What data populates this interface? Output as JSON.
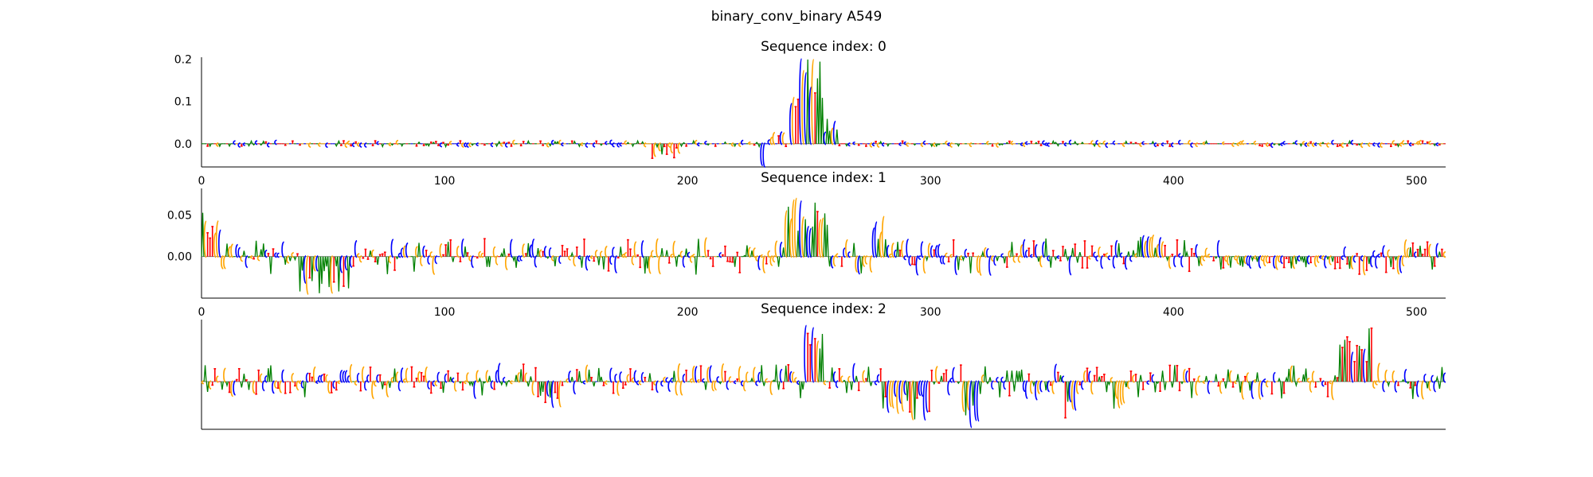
{
  "figure": {
    "suptitle": "binary_conv_binary A549"
  },
  "colors": {
    "A": "#008000",
    "C": "#0000ff",
    "G": "#ffa500",
    "T": "#ff0000",
    "axis": "#000000",
    "baseline": "#555555"
  },
  "chart_data": [
    {
      "type": "sequence-logo",
      "title": "Sequence index: 0",
      "xlim": [
        0,
        512
      ],
      "ylim": [
        -0.055,
        0.205
      ],
      "x_ticks": [
        0,
        100,
        200,
        300,
        400,
        500
      ],
      "x_tick_labels": [
        "0",
        "100",
        "200",
        "300",
        "400",
        "500"
      ],
      "y_ticks": [
        0.0,
        0.1,
        0.2
      ],
      "y_tick_labels": [
        "0.0",
        "0.1",
        "0.2"
      ],
      "background": {
        "amplitude": 0.004,
        "bias": -0.003
      },
      "regions": [
        {
          "range": [
            185,
            197
          ],
          "min": -0.04,
          "max": -0.005,
          "sign": "neg"
        },
        {
          "range": [
            230,
            240
          ],
          "min": -0.01,
          "max": 0.03,
          "sign": "mixed"
        },
        {
          "range": [
            242,
            246
          ],
          "min": 0.08,
          "max": 0.12,
          "sign": "pos"
        },
        {
          "range": [
            246,
            256
          ],
          "min": 0.1,
          "max": 0.2,
          "sign": "pos"
        },
        {
          "range": [
            256,
            262
          ],
          "min": 0.02,
          "max": 0.06,
          "sign": "pos"
        },
        {
          "range": [
            230,
            232
          ],
          "min": -0.055,
          "max": -0.03,
          "sign": "neg"
        }
      ]
    },
    {
      "type": "sequence-logo",
      "title": "Sequence index: 1",
      "xlim": [
        0,
        512
      ],
      "ylim": [
        -0.05,
        0.082
      ],
      "x_ticks": [
        0,
        100,
        200,
        300,
        400,
        500
      ],
      "x_tick_labels": [
        "0",
        "100",
        "200",
        "300",
        "400",
        "500"
      ],
      "y_ticks": [
        0.0,
        0.05
      ],
      "y_tick_labels": [
        "0.00",
        "0.05"
      ],
      "background": {
        "amplitude": 0.018,
        "bias": 0.004
      },
      "regions": [
        {
          "range": [
            0,
            8
          ],
          "min": 0.02,
          "max": 0.055,
          "sign": "pos"
        },
        {
          "range": [
            40,
            62
          ],
          "min": -0.045,
          "max": -0.01,
          "sign": "neg"
        },
        {
          "range": [
            240,
            258
          ],
          "min": 0.03,
          "max": 0.075,
          "sign": "pos"
        },
        {
          "range": [
            276,
            282
          ],
          "min": 0.02,
          "max": 0.05,
          "sign": "pos"
        },
        {
          "range": [
            385,
            395
          ],
          "min": 0.01,
          "max": 0.025,
          "sign": "pos"
        },
        {
          "range": [
            420,
            470
          ],
          "min": -0.015,
          "max": 0.0,
          "sign": "neg"
        }
      ]
    },
    {
      "type": "sequence-logo",
      "title": "Sequence index: 2",
      "xlim": [
        0,
        512
      ],
      "ylim": [
        -1.0,
        1.3
      ],
      "x_ticks": [],
      "x_tick_labels": [],
      "y_ticks": [],
      "y_tick_labels": [],
      "background": {
        "amplitude": 0.32,
        "bias": 0.05
      },
      "regions": [
        {
          "range": [
            248,
            256
          ],
          "min": 0.6,
          "max": 1.2,
          "sign": "pos"
        },
        {
          "range": [
            280,
            300
          ],
          "min": -0.8,
          "max": -0.2,
          "sign": "neg"
        },
        {
          "range": [
            313,
            320
          ],
          "min": -0.95,
          "max": -0.5,
          "sign": "neg"
        },
        {
          "range": [
            355,
            360
          ],
          "min": -0.85,
          "max": -0.4,
          "sign": "neg"
        },
        {
          "range": [
            375,
            380
          ],
          "min": -0.7,
          "max": -0.3,
          "sign": "neg"
        },
        {
          "range": [
            468,
            482
          ],
          "min": 0.4,
          "max": 1.2,
          "sign": "pos"
        },
        {
          "range": [
            140,
            148
          ],
          "min": -0.6,
          "max": -0.2,
          "sign": "neg"
        }
      ]
    }
  ]
}
